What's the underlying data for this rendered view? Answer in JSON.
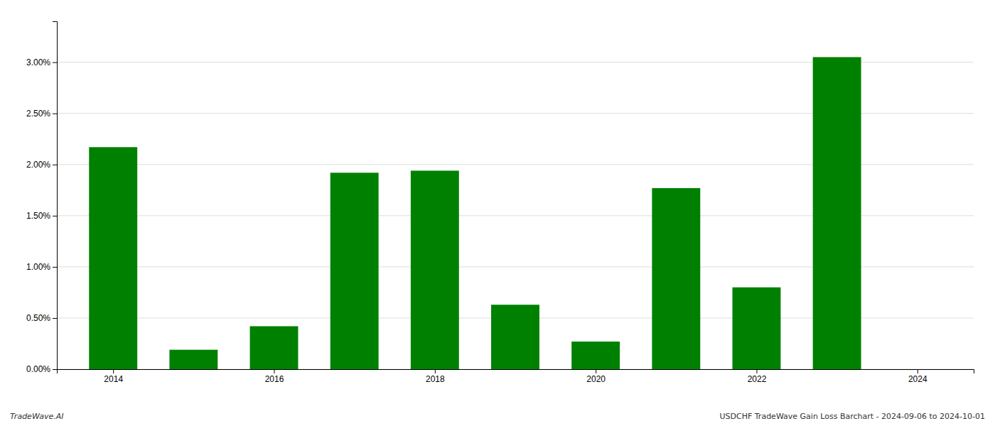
{
  "chart_data": {
    "type": "bar",
    "x": [
      2014,
      2015,
      2016,
      2017,
      2018,
      2019,
      2020,
      2021,
      2022,
      2023,
      2024
    ],
    "values": [
      0.0217,
      0.0019,
      0.0042,
      0.0192,
      0.0194,
      0.0063,
      0.0027,
      0.0177,
      0.008,
      0.0305,
      0.0
    ],
    "color": "#008000",
    "xlim": [
      2013.3,
      2024.7
    ],
    "xticks": [
      2014,
      2016,
      2018,
      2020,
      2022,
      2024
    ],
    "ylim": [
      0,
      0.034
    ],
    "yticks": [
      {
        "value": 0.0,
        "label": "0.00%"
      },
      {
        "value": 0.005,
        "label": "0.50%"
      },
      {
        "value": 0.01,
        "label": "1.00%"
      },
      {
        "value": 0.015,
        "label": "1.50%"
      },
      {
        "value": 0.02,
        "label": "2.00%"
      },
      {
        "value": 0.025,
        "label": "2.50%"
      },
      {
        "value": 0.03,
        "label": "3.00%"
      }
    ],
    "grid": true,
    "annotations": [
      "TradeWave.AI",
      "USDCHF TradeWave Gain Loss Barchart - 2024-09-06 to 2024-10-01"
    ]
  }
}
